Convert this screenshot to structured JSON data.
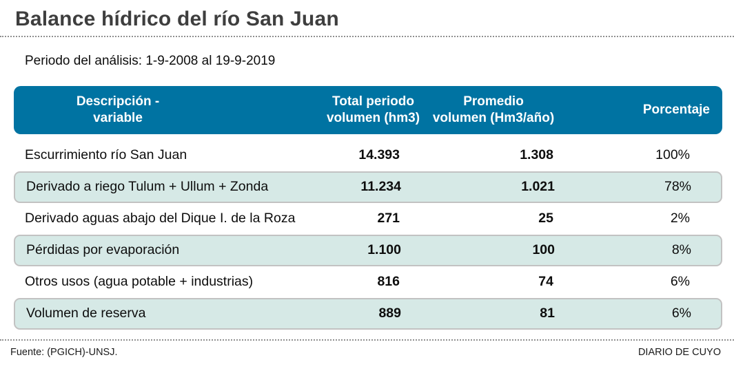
{
  "title": "Balance hídrico del río San Juan",
  "period": "Periodo del análisis: 1-9-2008 al 19-9-2019",
  "colors": {
    "header_bg": "#0073a2",
    "row_highlight_bg": "#d6e9e6",
    "row_border": "#c2c2c2",
    "title_text": "#3e3e3e"
  },
  "table": {
    "headers": {
      "descripcion": {
        "line1": "Descripción -",
        "line2": "variable"
      },
      "total": {
        "line1": "Total periodo",
        "line2": "volumen (hm3)"
      },
      "promedio": {
        "line1": "Promedio",
        "line2": "volumen (Hm3/año)"
      },
      "porcentaje": {
        "line1": "Porcentaje"
      }
    },
    "rows": [
      {
        "label": "Escurrimiento río San Juan",
        "total": "14.393",
        "promedio": "1.308",
        "porcentaje": "100%"
      },
      {
        "label": "Derivado a riego Tulum + Ullum + Zonda",
        "total": "11.234",
        "promedio": "1.021",
        "porcentaje": "78%"
      },
      {
        "label": "Derivado aguas abajo del Dique I. de la Roza",
        "total": "271",
        "promedio": "25",
        "porcentaje": "2%"
      },
      {
        "label": "Pérdidas por evaporación",
        "total": "1.100",
        "promedio": "100",
        "porcentaje": "8%"
      },
      {
        "label": "Otros usos (agua potable + industrias)",
        "total": "816",
        "promedio": "74",
        "porcentaje": "6%"
      },
      {
        "label": "Volumen de reserva",
        "total": "889",
        "promedio": "81",
        "porcentaje": "6%"
      }
    ]
  },
  "footer": {
    "source": "Fuente: (PGICH)-UNSJ.",
    "credit": "DIARIO DE CUYO"
  },
  "chart_data": {
    "type": "table",
    "title": "Balance hídrico del río San Juan",
    "subtitle": "Periodo del análisis: 1-9-2008 al 19-9-2019",
    "columns": [
      "Descripción - variable",
      "Total periodo volumen (hm3)",
      "Promedio volumen (Hm3/año)",
      "Porcentaje"
    ],
    "rows": [
      {
        "descripcion": "Escurrimiento río San Juan",
        "total_volumen_hm3": 14393,
        "promedio_volumen_hm3_ano": 1308,
        "porcentaje_pct": 100
      },
      {
        "descripcion": "Derivado a riego Tulum + Ullum + Zonda",
        "total_volumen_hm3": 11234,
        "promedio_volumen_hm3_ano": 1021,
        "porcentaje_pct": 78
      },
      {
        "descripcion": "Derivado aguas abajo del Dique I. de la Roza",
        "total_volumen_hm3": 271,
        "promedio_volumen_hm3_ano": 25,
        "porcentaje_pct": 2
      },
      {
        "descripcion": "Pérdidas por evaporación",
        "total_volumen_hm3": 1100,
        "promedio_volumen_hm3_ano": 100,
        "porcentaje_pct": 8
      },
      {
        "descripcion": "Otros usos (agua potable + industrias)",
        "total_volumen_hm3": 816,
        "promedio_volumen_hm3_ano": 74,
        "porcentaje_pct": 6
      },
      {
        "descripcion": "Volumen de reserva",
        "total_volumen_hm3": 889,
        "promedio_volumen_hm3_ano": 81,
        "porcentaje_pct": 6
      }
    ],
    "source": "Fuente: (PGICH)-UNSJ.",
    "publisher": "DIARIO DE CUYO"
  }
}
